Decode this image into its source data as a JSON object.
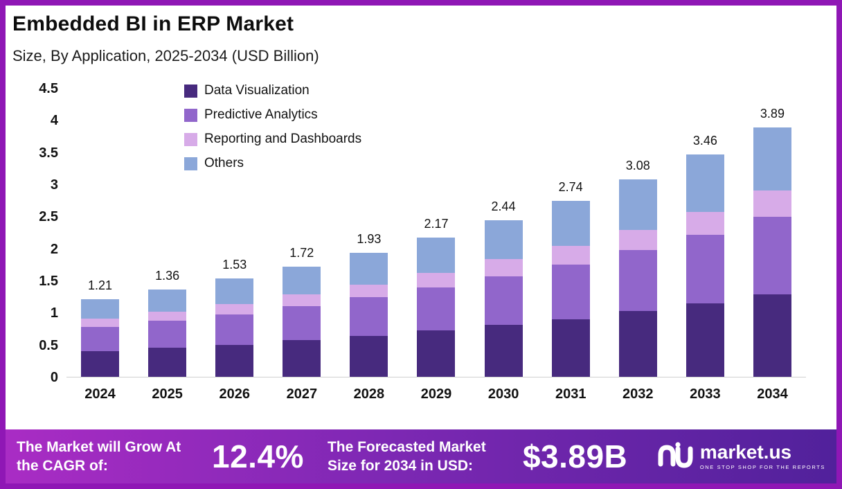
{
  "meta": {
    "title": "Embedded BI in ERP Market",
    "subtitle": "Size, By Application, 2025-2034 (USD Billion)"
  },
  "chart_data": {
    "type": "bar",
    "stacked": true,
    "title": "Embedded BI in ERP Market Size, By Application, 2025-2034 (USD Billion)",
    "categories": [
      "2024",
      "2025",
      "2026",
      "2027",
      "2028",
      "2029",
      "2030",
      "2031",
      "2032",
      "2033",
      "2034"
    ],
    "series": [
      {
        "name": "Data Visualization",
        "color": "#472a7e",
        "values": [
          0.4,
          0.45,
          0.5,
          0.57,
          0.64,
          0.72,
          0.81,
          0.9,
          1.02,
          1.14,
          1.28
        ]
      },
      {
        "name": "Predictive Analytics",
        "color": "#9166cb",
        "values": [
          0.38,
          0.42,
          0.47,
          0.53,
          0.6,
          0.67,
          0.76,
          0.85,
          0.95,
          1.07,
          1.21
        ]
      },
      {
        "name": "Reporting and Dashboards",
        "color": "#d7abe8",
        "values": [
          0.13,
          0.14,
          0.16,
          0.18,
          0.2,
          0.23,
          0.26,
          0.29,
          0.32,
          0.36,
          0.41
        ]
      },
      {
        "name": "Others",
        "color": "#8ba7d9",
        "values": [
          0.3,
          0.35,
          0.4,
          0.44,
          0.49,
          0.55,
          0.61,
          0.7,
          0.79,
          0.89,
          0.99
        ]
      }
    ],
    "totals": [
      "1.21",
      "1.36",
      "1.53",
      "1.72",
      "1.93",
      "2.17",
      "2.44",
      "2.74",
      "3.08",
      "3.46",
      "3.89"
    ],
    "ylim": [
      0,
      4.5
    ],
    "yticks": [
      "0",
      "0.5",
      "1",
      "1.5",
      "2",
      "2.5",
      "3",
      "3.5",
      "4",
      "4.5"
    ],
    "grid": false,
    "legend_position": "top-left-inside"
  },
  "footer": {
    "cagr_label": "The Market will Grow At the CAGR of:",
    "cagr_value": "12.4%",
    "forecast_label": "The Forecasted Market Size for 2034 in USD:",
    "forecast_value": "$3.89B",
    "brand": "market.us",
    "brand_tagline": "ONE STOP SHOP FOR THE REPORTS"
  },
  "colors": {
    "frame_border": "#8f17b5",
    "footer_gradient_start": "#a92cc4",
    "footer_gradient_end": "#51219b",
    "text": "#111111"
  }
}
